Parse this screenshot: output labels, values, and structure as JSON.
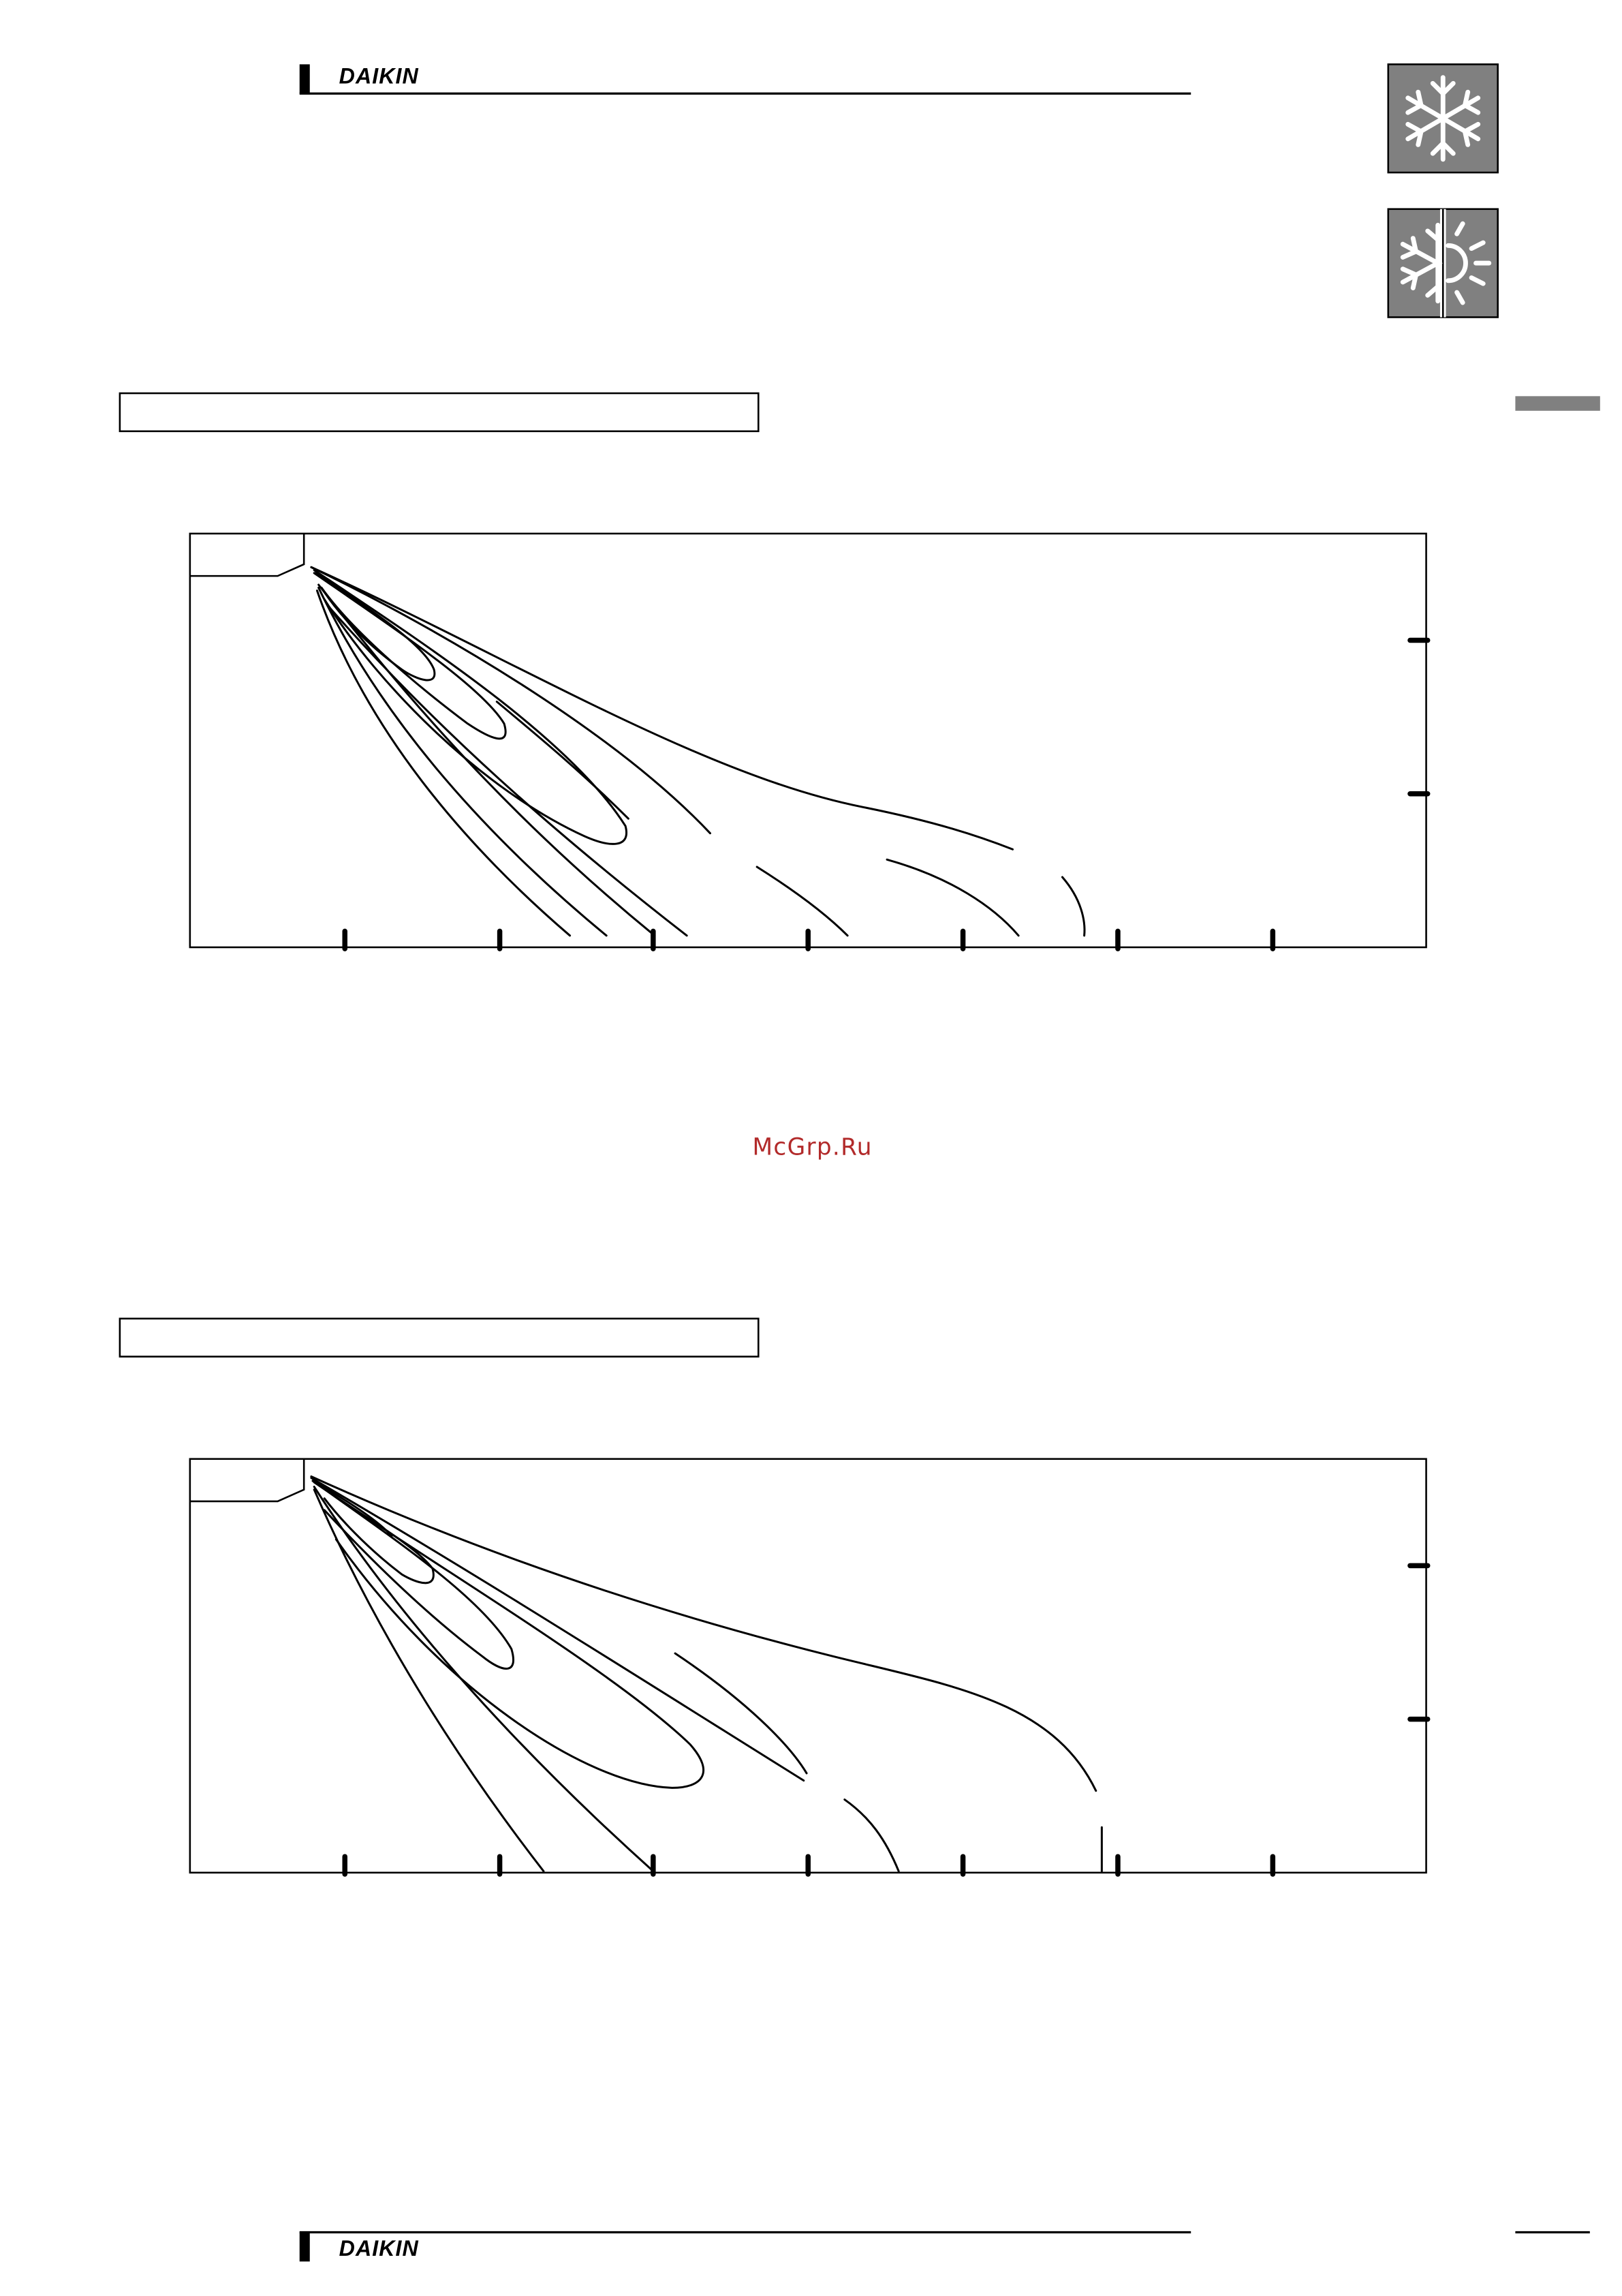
{
  "header": {
    "brand": "DAIKIN"
  },
  "watermark": "McGrp.Ru",
  "footer": {
    "brand": "DAIKIN"
  }
}
